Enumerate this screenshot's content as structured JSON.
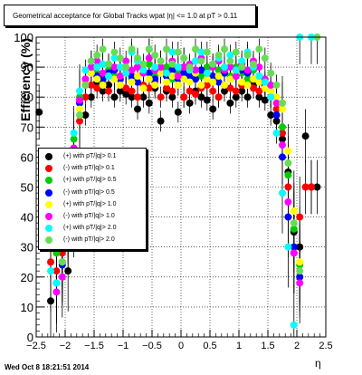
{
  "title": "Geometrical acceptance for Global Tracks wpat |η| <= 1.0 at pT > 0.11",
  "footer": "Wed Oct  8 18:21:51 2014",
  "chart_data": {
    "type": "scatter",
    "xlabel": "η",
    "ylabel": "Efficiency (%)",
    "xlim": [
      -2.5,
      2.5
    ],
    "ylim": [
      0,
      100
    ],
    "x_ticks": [
      "−2.5",
      "−2",
      "−1.5",
      "−1",
      "−0.5",
      "0",
      "0.5",
      "1",
      "1.5",
      "2",
      "2.5"
    ],
    "y_ticks": [
      "0",
      "10",
      "20",
      "30",
      "40",
      "50",
      "60",
      "70",
      "80",
      "90",
      "100"
    ],
    "grid": true,
    "legend_position": "left-middle",
    "series": [
      {
        "name": "(+) with pT/|q|> 0.1",
        "color": "#000000",
        "x": [
          -2.45,
          -2.25,
          -2.15,
          -2.05,
          -1.95,
          -1.85,
          -1.75,
          -1.65,
          -1.55,
          -1.45,
          -1.35,
          -1.25,
          -1.15,
          -1.05,
          -0.95,
          -0.85,
          -0.75,
          -0.65,
          -0.55,
          -0.45,
          -0.35,
          -0.25,
          -0.15,
          -0.05,
          0.05,
          0.15,
          0.25,
          0.35,
          0.45,
          0.55,
          0.65,
          0.75,
          0.85,
          0.95,
          1.05,
          1.15,
          1.25,
          1.35,
          1.45,
          1.55,
          1.65,
          1.75,
          1.85,
          1.95,
          2.05,
          2.15,
          2.25,
          2.35
        ],
        "y": [
          75,
          12,
          30,
          25,
          22,
          40,
          60,
          74,
          80,
          85,
          82,
          84,
          80,
          82,
          81,
          80,
          76,
          80,
          78,
          83,
          72,
          82,
          80,
          75,
          80,
          78,
          82,
          80,
          79,
          76,
          80,
          82,
          78,
          80,
          82,
          80,
          84,
          80,
          79,
          74,
          72,
          66,
          55,
          35,
          30,
          67,
          50,
          50
        ]
      },
      {
        "name": "(-) with pT/|q|> 0.1",
        "color": "#ff0000",
        "x": [
          -2.25,
          -2.15,
          -2.05,
          -1.95,
          -1.85,
          -1.75,
          -1.65,
          -1.55,
          -1.45,
          -1.35,
          -1.25,
          -1.15,
          -1.05,
          -0.95,
          -0.85,
          -0.75,
          -0.65,
          -0.55,
          -0.45,
          -0.35,
          -0.25,
          -0.15,
          -0.05,
          0.05,
          0.15,
          0.25,
          0.35,
          0.45,
          0.55,
          0.65,
          0.75,
          0.85,
          0.95,
          1.05,
          1.15,
          1.25,
          1.35,
          1.45,
          1.55,
          1.65,
          1.75,
          1.85,
          1.95,
          2.05,
          2.15,
          2.25
        ],
        "y": [
          25,
          22,
          28,
          36,
          55,
          72,
          80,
          84,
          83,
          85,
          82,
          86,
          84,
          83,
          82,
          80,
          84,
          83,
          85,
          80,
          83,
          82,
          84,
          80,
          82,
          81,
          83,
          84,
          82,
          80,
          84,
          83,
          82,
          84,
          85,
          83,
          82,
          84,
          80,
          76,
          68,
          50,
          28,
          40,
          50,
          50
        ]
      },
      {
        "name": "(+) with pT/|q|> 0.5",
        "color": "#00cc00",
        "x": [
          -2.15,
          -2.05,
          -1.95,
          -1.85,
          -1.75,
          -1.65,
          -1.55,
          -1.45,
          -1.35,
          -1.25,
          -1.15,
          -1.05,
          -0.95,
          -0.85,
          -0.75,
          -0.65,
          -0.55,
          -0.45,
          -0.35,
          -0.25,
          -0.15,
          -0.05,
          0.05,
          0.15,
          0.25,
          0.35,
          0.45,
          0.55,
          0.65,
          0.75,
          0.85,
          0.95,
          1.05,
          1.15,
          1.25,
          1.35,
          1.45,
          1.55,
          1.65,
          1.75,
          1.85,
          1.95,
          2.05
        ],
        "y": [
          28,
          35,
          50,
          66,
          80,
          86,
          90,
          88,
          85,
          89,
          87,
          90,
          88,
          86,
          90,
          88,
          91,
          87,
          89,
          90,
          86,
          88,
          90,
          88,
          89,
          87,
          90,
          86,
          89,
          88,
          87,
          90,
          88,
          86,
          89,
          85,
          84,
          82,
          80,
          70,
          54,
          36,
          24
        ]
      },
      {
        "name": "(-) with pT/|q|> 0.5",
        "color": "#0000ff",
        "x": [
          -2.15,
          -2.05,
          -1.95,
          -1.85,
          -1.75,
          -1.65,
          -1.55,
          -1.45,
          -1.35,
          -1.25,
          -1.15,
          -1.05,
          -0.95,
          -0.85,
          -0.75,
          -0.65,
          -0.55,
          -0.45,
          -0.35,
          -0.25,
          -0.15,
          -0.05,
          0.05,
          0.15,
          0.25,
          0.35,
          0.45,
          0.55,
          0.65,
          0.75,
          0.85,
          0.95,
          1.05,
          1.15,
          1.25,
          1.35,
          1.45,
          1.55,
          1.65,
          1.75,
          1.85,
          1.95,
          2.05
        ],
        "y": [
          18,
          24,
          40,
          62,
          78,
          84,
          88,
          87,
          86,
          88,
          89,
          86,
          88,
          87,
          85,
          89,
          88,
          86,
          88,
          87,
          89,
          86,
          88,
          87,
          86,
          89,
          88,
          87,
          85,
          88,
          86,
          87,
          89,
          88,
          86,
          87,
          84,
          80,
          74,
          60,
          40,
          30,
          20
        ]
      },
      {
        "name": "(+) with pT/|q|> 1.0",
        "color": "#ffff00",
        "x": [
          -2.05,
          -1.95,
          -1.85,
          -1.75,
          -1.65,
          -1.55,
          -1.45,
          -1.35,
          -1.25,
          -1.15,
          -1.05,
          -0.95,
          -0.85,
          -0.75,
          -0.65,
          -0.55,
          -0.45,
          -0.35,
          -0.25,
          -0.15,
          -0.05,
          0.05,
          0.15,
          0.25,
          0.35,
          0.45,
          0.55,
          0.65,
          0.75,
          0.85,
          0.95,
          1.05,
          1.15,
          1.25,
          1.35,
          1.45,
          1.55,
          1.65,
          1.75,
          1.85,
          1.95,
          2.05
        ],
        "y": [
          30,
          42,
          60,
          76,
          85,
          88,
          86,
          84,
          87,
          86,
          84,
          88,
          85,
          87,
          83,
          86,
          84,
          88,
          85,
          87,
          84,
          86,
          85,
          88,
          84,
          86,
          85,
          87,
          84,
          86,
          88,
          85,
          84,
          86,
          85,
          83,
          82,
          80,
          76,
          62,
          42,
          25
        ]
      },
      {
        "name": "(-) with pT/|q|> 1.0",
        "color": "#ff00ff",
        "x": [
          -2.15,
          -2.05,
          -1.95,
          -1.85,
          -1.75,
          -1.65,
          -1.55,
          -1.45,
          -1.35,
          -1.25,
          -1.15,
          -1.05,
          -0.95,
          -0.85,
          -0.75,
          -0.65,
          -0.55,
          -0.45,
          -0.35,
          -0.25,
          -0.15,
          -0.05,
          0.05,
          0.15,
          0.25,
          0.35,
          0.45,
          0.55,
          0.65,
          0.75,
          0.85,
          0.95,
          1.05,
          1.15,
          1.25,
          1.35,
          1.45,
          1.55,
          1.65,
          1.75,
          1.85,
          1.95,
          2.05
        ],
        "y": [
          15,
          20,
          45,
          63,
          79,
          86,
          90,
          92,
          88,
          91,
          90,
          87,
          92,
          89,
          90,
          88,
          93,
          89,
          90,
          88,
          92,
          87,
          90,
          91,
          89,
          93,
          88,
          90,
          92,
          89,
          90,
          87,
          91,
          89,
          92,
          90,
          86,
          84,
          78,
          64,
          45,
          28,
          18
        ]
      },
      {
        "name": "(+) with pT/|q|> 2.0",
        "color": "#00ffff",
        "x": [
          -2.25,
          -2.15,
          -2.05,
          -1.95,
          -1.85,
          -1.75,
          -1.65,
          -1.55,
          -1.45,
          -1.35,
          -1.25,
          -1.15,
          -1.05,
          -0.95,
          -0.85,
          -0.75,
          -0.65,
          -0.55,
          -0.45,
          -0.35,
          -0.25,
          -0.15,
          -0.05,
          0.05,
          0.15,
          0.25,
          0.35,
          0.45,
          0.55,
          0.65,
          0.75,
          0.85,
          0.95,
          1.05,
          1.15,
          1.25,
          1.35,
          1.45,
          1.55,
          1.65,
          1.75,
          1.85,
          1.95,
          2.05,
          2.25
        ],
        "y": [
          22,
          18,
          30,
          48,
          68,
          82,
          89,
          92,
          90,
          91,
          87,
          93,
          90,
          88,
          95,
          92,
          89,
          96,
          90,
          92,
          88,
          95,
          90,
          93,
          89,
          92,
          95,
          88,
          91,
          93,
          90,
          94,
          89,
          92,
          95,
          90,
          87,
          85,
          80,
          68,
          48,
          30,
          4,
          100,
          100
        ]
      },
      {
        "name": "(-) with pT/|q|> 2.0",
        "color": "#66dd55",
        "x": [
          -2.05,
          -1.95,
          -1.85,
          -1.75,
          -1.65,
          -1.55,
          -1.45,
          -1.35,
          -1.25,
          -1.15,
          -1.05,
          -0.95,
          -0.85,
          -0.75,
          -0.65,
          -0.55,
          -0.45,
          -0.35,
          -0.25,
          -0.15,
          -0.05,
          0.05,
          0.15,
          0.25,
          0.35,
          0.45,
          0.55,
          0.65,
          0.75,
          0.85,
          0.95,
          1.05,
          1.15,
          1.25,
          1.35,
          1.45,
          1.55,
          1.65,
          1.75,
          1.85,
          1.95,
          2.05,
          2.35
        ],
        "y": [
          25,
          38,
          56,
          74,
          84,
          92,
          94,
          96,
          91,
          95,
          93,
          90,
          96,
          93,
          91,
          96,
          94,
          92,
          96,
          91,
          95,
          93,
          90,
          96,
          92,
          95,
          91,
          94,
          96,
          92,
          95,
          90,
          94,
          91,
          96,
          93,
          88,
          84,
          78,
          58,
          38,
          22,
          100
        ]
      }
    ]
  }
}
